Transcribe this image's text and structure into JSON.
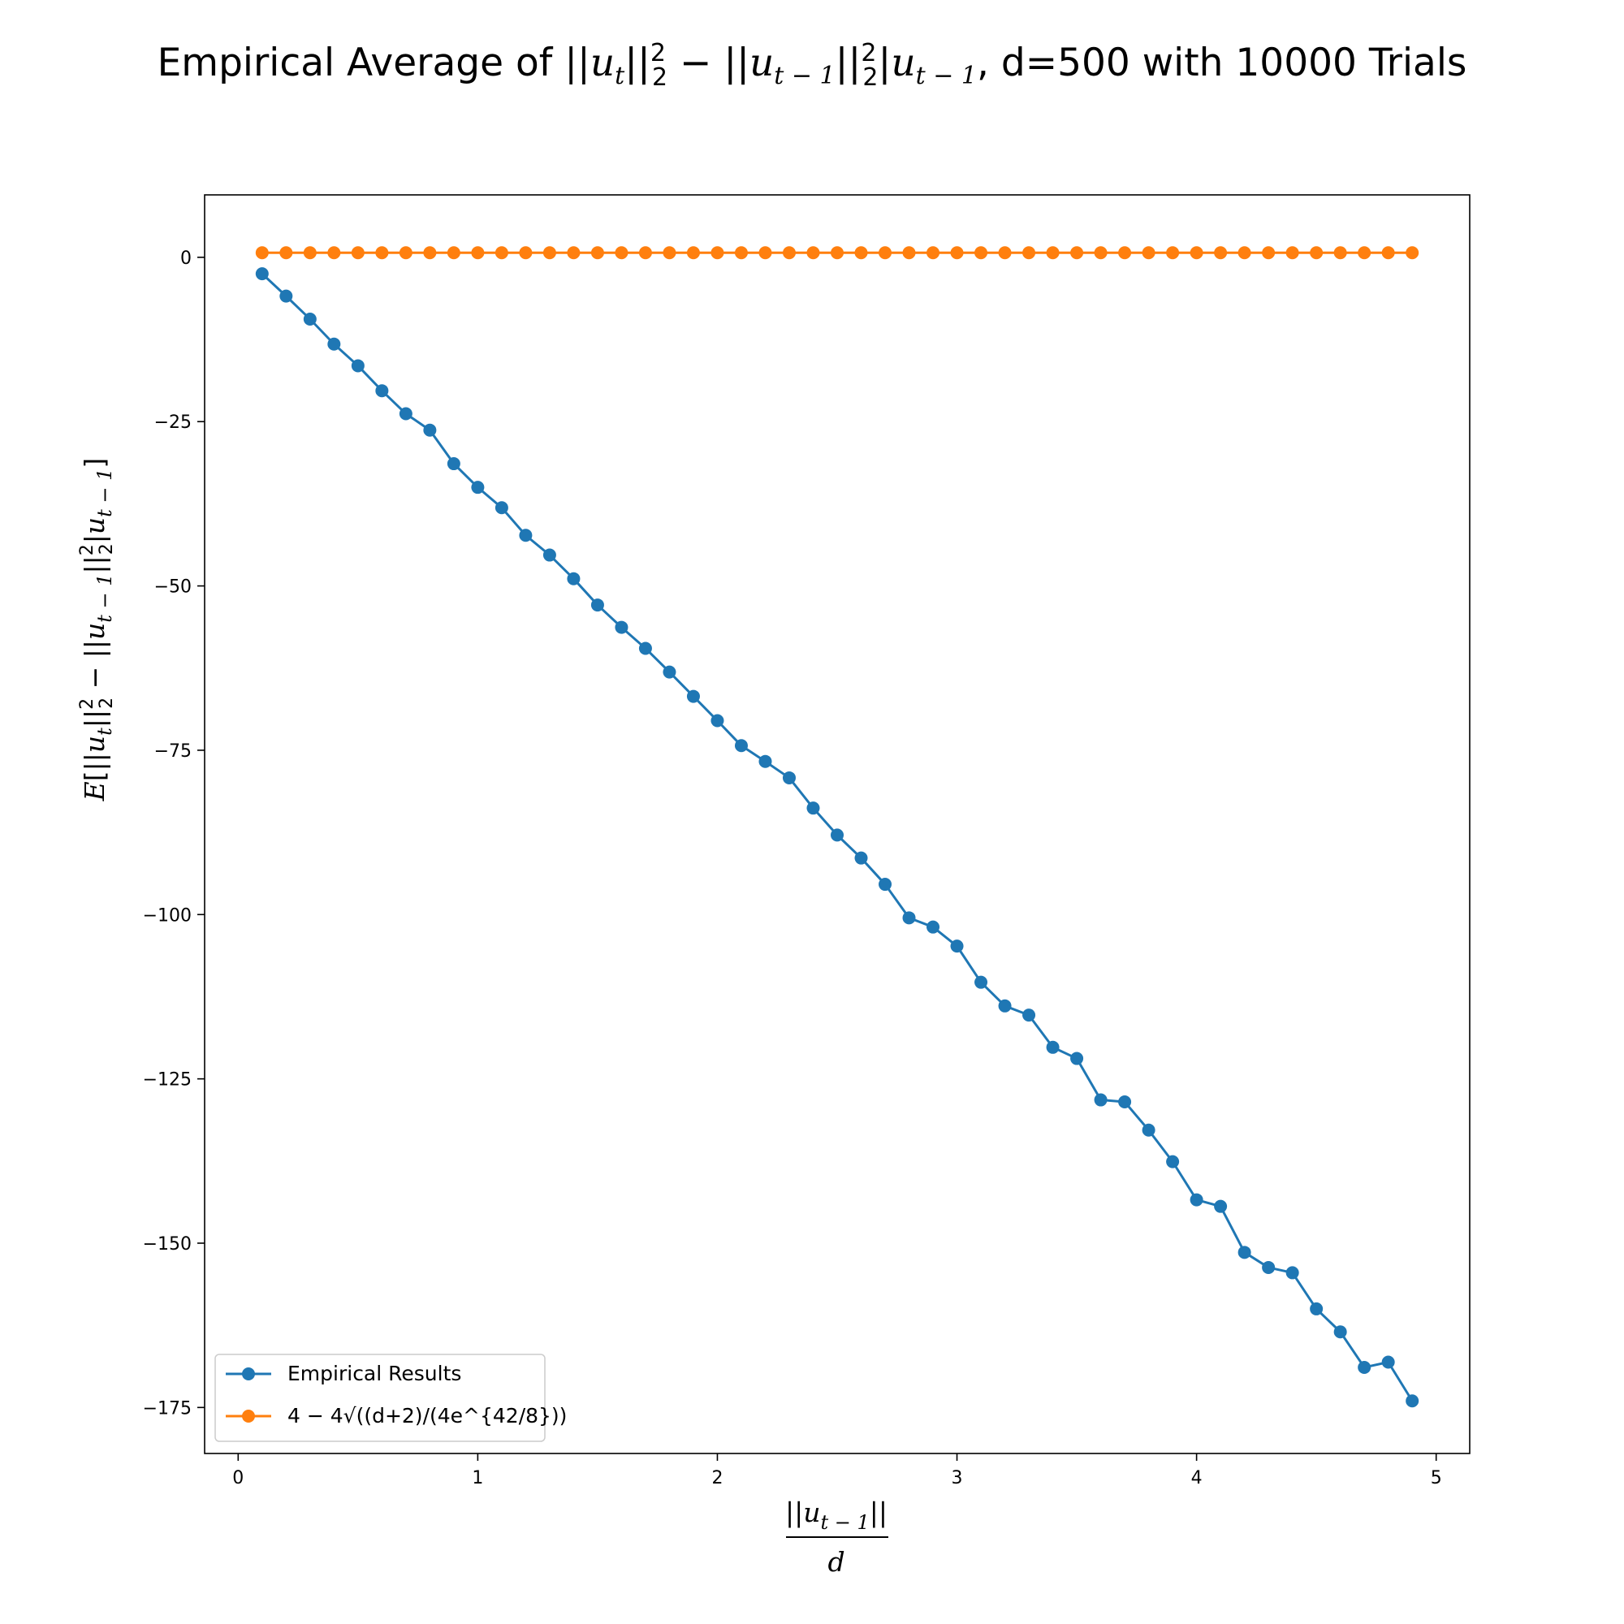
{
  "chart_data": {
    "type": "line",
    "title": {
      "prefix": "Empirical Average of ",
      "math": "||u_t||₂² − ||u_{t−1}||₂² | u_{t−1}",
      "suffix": ", d=500 with 10000 Trials"
    },
    "xlabel": {
      "numerator": "||u_{t−1}||",
      "denominator": "d"
    },
    "ylabel": "E[||u_t||₂² − ||u_{t−1}||₂² | u_{t−1}]",
    "xlim": [
      -0.14,
      5.14
    ],
    "ylim": [
      -182,
      9.5
    ],
    "x_ticks": [
      0,
      1,
      2,
      3,
      4,
      5
    ],
    "y_ticks": [
      0,
      -25,
      -50,
      -75,
      -100,
      -125,
      -150,
      -175
    ],
    "x_tick_labels": [
      "0",
      "1",
      "2",
      "3",
      "4",
      "5"
    ],
    "y_tick_labels": [
      "0",
      "−25",
      "−50",
      "−75",
      "−100",
      "−125",
      "−150",
      "−175"
    ],
    "x": [
      0.1,
      0.2,
      0.3,
      0.4,
      0.5,
      0.6,
      0.7,
      0.8,
      0.9,
      1.0,
      1.1,
      1.2,
      1.3,
      1.4,
      1.5,
      1.6,
      1.7,
      1.8,
      1.9,
      2.0,
      2.1,
      2.2,
      2.3,
      2.4,
      2.5,
      2.6,
      2.7,
      2.8,
      2.9,
      3.0,
      3.1,
      3.2,
      3.3,
      3.4,
      3.5,
      3.6,
      3.7,
      3.8,
      3.9,
      4.0,
      4.1,
      4.2,
      4.3,
      4.4,
      4.5,
      4.6,
      4.7,
      4.8,
      4.9
    ],
    "series": [
      {
        "name": "Empirical Results",
        "color": "#1f77b4",
        "values": [
          -2.5,
          -5.9,
          -9.4,
          -13.2,
          -16.5,
          -20.3,
          -23.8,
          -26.3,
          -31.4,
          -35.0,
          -38.1,
          -42.3,
          -45.3,
          -48.9,
          -52.9,
          -56.3,
          -59.5,
          -63.1,
          -66.8,
          -70.5,
          -74.3,
          -76.7,
          -79.2,
          -83.8,
          -87.9,
          -91.4,
          -95.4,
          -100.5,
          -101.9,
          -104.8,
          -110.3,
          -113.9,
          -115.3,
          -120.2,
          -121.9,
          -128.2,
          -128.5,
          -132.8,
          -137.6,
          -143.4,
          -144.4,
          -151.4,
          -153.7,
          -154.5,
          -160.0,
          -163.5,
          -168.9,
          -168.1,
          -174.0
        ]
      },
      {
        "name": "4 − 4√((d+2)/(4e^{42/8}))",
        "color": "#ff7f0e",
        "values": [
          0.7,
          0.7,
          0.7,
          0.7,
          0.7,
          0.7,
          0.7,
          0.7,
          0.7,
          0.7,
          0.7,
          0.7,
          0.7,
          0.7,
          0.7,
          0.7,
          0.7,
          0.7,
          0.7,
          0.7,
          0.7,
          0.7,
          0.7,
          0.7,
          0.7,
          0.7,
          0.7,
          0.7,
          0.7,
          0.7,
          0.7,
          0.7,
          0.7,
          0.7,
          0.7,
          0.7,
          0.7,
          0.7,
          0.7,
          0.7,
          0.7,
          0.7,
          0.7,
          0.7,
          0.7,
          0.7,
          0.7,
          0.7,
          0.7
        ]
      }
    ],
    "legend": {
      "position": "lower-left",
      "entries": [
        "Empirical Results",
        "4 − 4√((d+2)/(4e^{42/8}))"
      ]
    },
    "grid": false
  }
}
